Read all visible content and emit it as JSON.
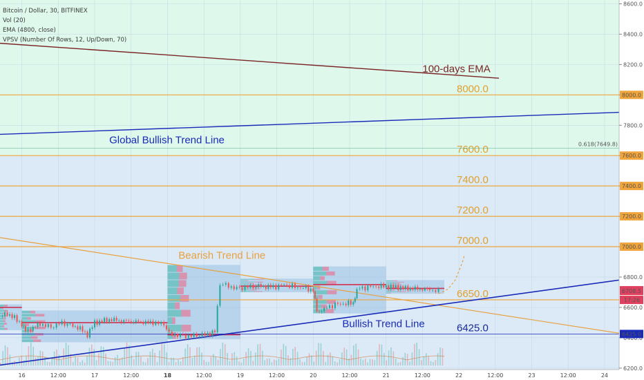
{
  "header": {
    "symbol": "Bitcoin / Dollar, 30, BITFINEX",
    "indicators": [
      "Vol (20)",
      "EMA (4800, close)",
      "VPSV (Number Of Rows, 12, Up/Down, 70)"
    ]
  },
  "colors": {
    "green_zone": "#def8ec",
    "blue_zone": "#dbeaf6",
    "level_line": "#f0a43a",
    "level_text": "#e0a030",
    "ema_line": "#7a2424",
    "bull_line": "#1a2ab8",
    "bear_line": "#e8a040",
    "candle_up": "#26a69a",
    "candle_down": "#ef5350",
    "fib_text": "#3aa47a"
  },
  "chart_data": {
    "type": "line",
    "title": "Bitcoin / Dollar, 30, BITFINEX",
    "ylim": [
      6190,
      8625
    ],
    "xlim": [
      15.7,
      24.2
    ],
    "y_ticks": [
      "6200.0",
      "6400.0",
      "6600.0",
      "6800.0",
      "7000.0",
      "7200.0",
      "7400.0",
      "7600.0",
      "7800.0",
      "8000.0",
      "8200.0",
      "8400.0",
      "8600.0"
    ],
    "x_ticks": [
      {
        "label": "16",
        "day": 16
      },
      {
        "label": "12:00",
        "day": 16.5
      },
      {
        "label": "17",
        "day": 17
      },
      {
        "label": "12:00",
        "day": 17.5
      },
      {
        "label": "18",
        "day": 18
      },
      {
        "label": "12:00",
        "day": 18.5
      },
      {
        "label": "19",
        "day": 19
      },
      {
        "label": "12:00",
        "day": 19.5
      },
      {
        "label": "20",
        "day": 20
      },
      {
        "label": "12:00",
        "day": 20.5
      },
      {
        "label": "21",
        "day": 21
      },
      {
        "label": "12:00",
        "day": 21.5
      },
      {
        "label": "22",
        "day": 22
      },
      {
        "label": "12:00",
        "day": 22.5
      },
      {
        "label": "23",
        "day": 23
      },
      {
        "label": "12:00",
        "day": 23.5
      },
      {
        "label": "24",
        "day": 24
      }
    ],
    "levels": [
      {
        "value": 8000,
        "label": "8000.0",
        "axis_label": "8000.0"
      },
      {
        "value": 7600,
        "label": "7600.0",
        "axis_label": "7600.0"
      },
      {
        "value": 7400,
        "label": "7400.0",
        "axis_label": "7400.0"
      },
      {
        "value": 7200,
        "label": "7200.0",
        "axis_label": "7200.0"
      },
      {
        "value": 7000,
        "label": "7000.0",
        "axis_label": "7000.0"
      },
      {
        "value": 6650,
        "label": "6650.0",
        "axis_label": "6650.0"
      },
      {
        "value": 6425,
        "label": "6425.0",
        "axis_label": "6425.0"
      }
    ],
    "fib": {
      "value": 7649.8,
      "label": "0.618(7649.8)"
    },
    "zones": [
      {
        "name": "green",
        "from": 7600,
        "to": 8625
      },
      {
        "name": "blue",
        "from": 6190,
        "to": 7600
      }
    ],
    "lines": [
      {
        "name": "100-days EMA",
        "points": [
          [
            15.7,
            8340
          ],
          [
            22.55,
            8110
          ]
        ]
      },
      {
        "name": "Global Bullish Trend Line",
        "points": [
          [
            15.7,
            7740
          ],
          [
            24.2,
            7885
          ]
        ]
      },
      {
        "name": "Bearish Trend Line",
        "points": [
          [
            15.7,
            7060
          ],
          [
            24.2,
            6430
          ]
        ]
      },
      {
        "name": "Bullish Trend Line",
        "points": [
          [
            15.7,
            6220
          ],
          [
            24.2,
            6780
          ]
        ]
      }
    ],
    "annotations": [
      {
        "text": "100-days EMA",
        "day": 21.5,
        "price": 8150
      },
      {
        "text": "Global Bullish Trend Line",
        "day": 17.2,
        "price": 7680
      },
      {
        "text": "Bearish Trend Line",
        "day": 18.15,
        "price": 6920
      },
      {
        "text": "Bullish Trend Line",
        "day": 20.4,
        "price": 6470
      }
    ],
    "price_series": [
      [
        15.7,
        6540
      ],
      [
        15.8,
        6560
      ],
      [
        15.9,
        6530
      ],
      [
        16.0,
        6490
      ],
      [
        16.05,
        6440
      ],
      [
        16.12,
        6460
      ],
      [
        16.25,
        6490
      ],
      [
        16.4,
        6470
      ],
      [
        16.55,
        6500
      ],
      [
        16.7,
        6480
      ],
      [
        16.8,
        6460
      ],
      [
        16.9,
        6420
      ],
      [
        17.0,
        6500
      ],
      [
        17.2,
        6520
      ],
      [
        17.4,
        6510
      ],
      [
        17.6,
        6505
      ],
      [
        17.8,
        6500
      ],
      [
        17.95,
        6490
      ],
      [
        18.02,
        6430
      ],
      [
        18.1,
        6420
      ],
      [
        18.25,
        6410
      ],
      [
        18.4,
        6415
      ],
      [
        18.55,
        6425
      ],
      [
        18.65,
        6440
      ],
      [
        18.72,
        6760
      ],
      [
        18.8,
        6745
      ],
      [
        18.95,
        6725
      ],
      [
        19.1,
        6735
      ],
      [
        19.25,
        6740
      ],
      [
        19.45,
        6735
      ],
      [
        19.6,
        6750
      ],
      [
        19.75,
        6735
      ],
      [
        19.9,
        6725
      ],
      [
        20.0,
        6715
      ],
      [
        20.05,
        6570
      ],
      [
        20.15,
        6590
      ],
      [
        20.3,
        6620
      ],
      [
        20.45,
        6625
      ],
      [
        20.55,
        6630
      ],
      [
        20.6,
        6720
      ],
      [
        20.75,
        6735
      ],
      [
        20.9,
        6740
      ],
      [
        21.1,
        6735
      ],
      [
        21.3,
        6725
      ],
      [
        21.5,
        6720
      ],
      [
        21.6,
        6715
      ],
      [
        21.72,
        6708.5
      ]
    ],
    "last_price": "6708.5",
    "countdown": "17:26",
    "projection": [
      [
        21.72,
        6690
      ],
      [
        21.85,
        6720
      ],
      [
        21.95,
        6780
      ],
      [
        22.05,
        6900
      ],
      [
        22.08,
        6950
      ]
    ],
    "volume_profiles": [
      {
        "from": 15.7,
        "to": 16.0,
        "lo": 6450,
        "hi": 6620,
        "poc": 6600
      },
      {
        "from": 16.0,
        "to": 18.0,
        "lo": 6370,
        "hi": 6580,
        "poc": 6500
      },
      {
        "from": 18.0,
        "to": 19.0,
        "lo": 6390,
        "hi": 6880,
        "poc": 6420
      },
      {
        "from": 19.0,
        "to": 20.0,
        "lo": 6700,
        "hi": 6790,
        "poc": 6740
      },
      {
        "from": 20.0,
        "to": 21.0,
        "lo": 6560,
        "hi": 6870,
        "poc": 6750
      },
      {
        "from": 21.0,
        "to": 21.8,
        "lo": 6690,
        "hi": 6780,
        "poc": 6725
      }
    ]
  }
}
